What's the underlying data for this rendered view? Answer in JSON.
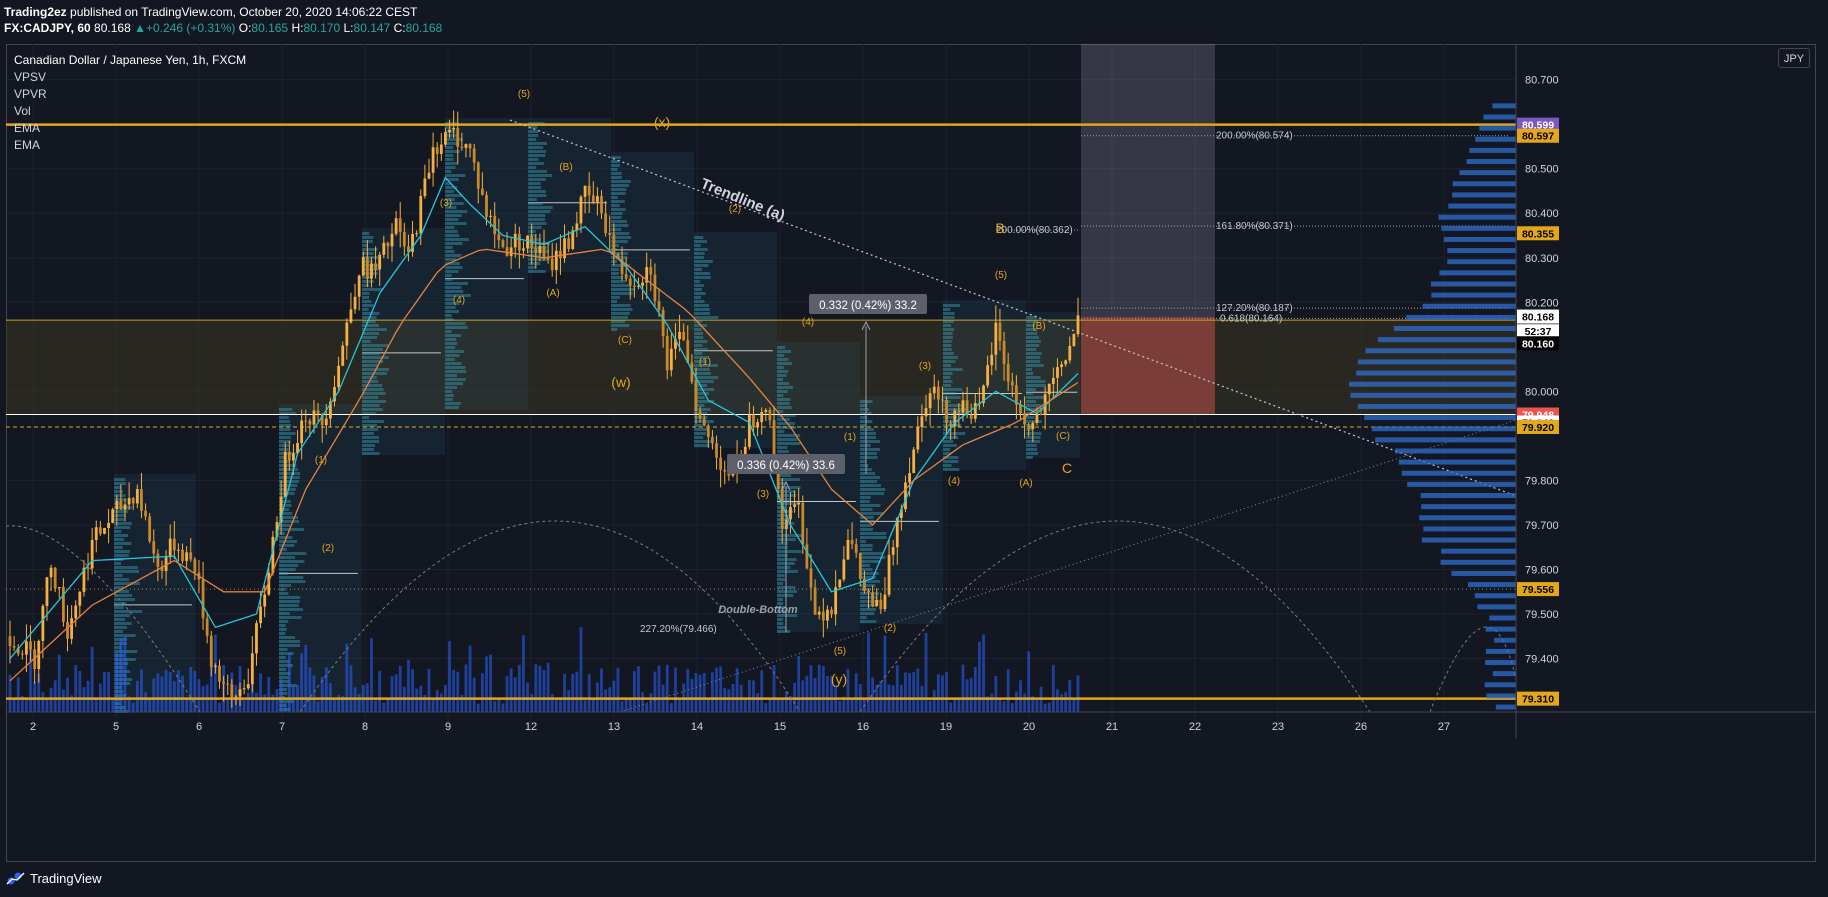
{
  "header": {
    "publisher": "Trading2ez",
    "published_text": "published on TradingView.com, October 20, 2020 14:06:22 CEST",
    "symbol": "FX:CADJPY, 60",
    "last": "80.168",
    "change": "+0.246 (+0.31%)",
    "o_label": "O:",
    "open": "80.165",
    "h_label": "H:",
    "high": "80.170",
    "l_label": "L:",
    "low": "80.147",
    "c_label": "C:",
    "close": "80.168"
  },
  "legend": {
    "title": "Canadian Dollar / Japanese Yen, 1h, FXCM",
    "indicators": [
      "VPSV",
      "VPVR",
      "Vol",
      "EMA",
      "EMA"
    ]
  },
  "currency": "JPY",
  "footer": {
    "brand": "TradingView"
  },
  "colors": {
    "bg": "#131722",
    "candle": "#f5b041",
    "grid": "#1e222d",
    "ema_fast": "#26c6da",
    "ema_slow": "#e8833a",
    "gold": "#e3a71b",
    "volume": "#2962ff",
    "purple": "#7e57c2",
    "red": "#ef5350"
  },
  "chart_data": {
    "type": "candlestick",
    "y_range": [
      79.28,
      80.78
    ],
    "y_ticks": [
      "80.700",
      "80.500",
      "80.400",
      "80.300",
      "80.200",
      "80.000",
      "79.800",
      "79.700",
      "79.600",
      "79.500",
      "79.400"
    ],
    "x_ticks": [
      "2",
      "5",
      "6",
      "7",
      "8",
      "9",
      "12",
      "13",
      "14",
      "15",
      "16",
      "19",
      "20",
      "21",
      "22",
      "23",
      "26",
      "27"
    ],
    "close_path": [
      [
        0,
        79.45
      ],
      [
        6,
        79.4
      ],
      [
        10,
        79.62
      ],
      [
        14,
        79.46
      ],
      [
        20,
        79.66
      ],
      [
        25,
        79.72
      ],
      [
        31,
        79.78
      ],
      [
        36,
        79.6
      ],
      [
        40,
        79.66
      ],
      [
        45,
        79.61
      ],
      [
        49,
        79.4
      ],
      [
        54,
        79.3
      ],
      [
        58,
        79.36
      ],
      [
        62,
        79.55
      ],
      [
        67,
        79.84
      ],
      [
        72,
        79.95
      ],
      [
        76,
        79.93
      ],
      [
        80,
        80.06
      ],
      [
        85,
        80.28
      ],
      [
        89,
        80.27
      ],
      [
        94,
        80.37
      ],
      [
        97,
        80.3
      ],
      [
        100,
        80.42
      ],
      [
        103,
        80.55
      ],
      [
        108,
        80.58
      ],
      [
        112,
        80.54
      ],
      [
        116,
        80.4
      ],
      [
        120,
        80.32
      ],
      [
        124,
        80.34
      ],
      [
        128,
        80.32
      ],
      [
        131,
        80.28
      ],
      [
        136,
        80.34
      ],
      [
        140,
        80.44
      ],
      [
        144,
        80.41
      ],
      [
        148,
        80.28
      ],
      [
        152,
        80.25
      ],
      [
        156,
        80.28
      ],
      [
        160,
        80.06
      ],
      [
        164,
        80.13
      ],
      [
        168,
        79.93
      ],
      [
        172,
        79.86
      ],
      [
        176,
        79.8
      ],
      [
        180,
        79.93
      ],
      [
        184,
        79.98
      ],
      [
        188,
        79.71
      ],
      [
        192,
        79.74
      ],
      [
        196,
        79.5
      ],
      [
        200,
        79.52
      ],
      [
        204,
        79.68
      ],
      [
        208,
        79.55
      ],
      [
        212,
        79.5
      ],
      [
        216,
        79.72
      ],
      [
        220,
        79.88
      ],
      [
        224,
        80.02
      ],
      [
        228,
        79.94
      ],
      [
        232,
        79.97
      ],
      [
        236,
        79.95
      ],
      [
        240,
        80.14
      ],
      [
        244,
        80.0
      ],
      [
        248,
        79.91
      ],
      [
        252,
        79.97
      ],
      [
        256,
        80.06
      ],
      [
        260,
        80.15
      ]
    ],
    "ema_fast": [
      [
        0,
        79.4
      ],
      [
        20,
        79.62
      ],
      [
        40,
        79.63
      ],
      [
        50,
        79.47
      ],
      [
        60,
        79.5
      ],
      [
        70,
        79.86
      ],
      [
        80,
        80.0
      ],
      [
        90,
        80.22
      ],
      [
        100,
        80.35
      ],
      [
        106,
        80.48
      ],
      [
        112,
        80.42
      ],
      [
        120,
        80.35
      ],
      [
        130,
        80.33
      ],
      [
        140,
        80.37
      ],
      [
        150,
        80.28
      ],
      [
        160,
        80.15
      ],
      [
        170,
        79.98
      ],
      [
        180,
        79.93
      ],
      [
        190,
        79.7
      ],
      [
        200,
        79.55
      ],
      [
        210,
        79.58
      ],
      [
        220,
        79.8
      ],
      [
        230,
        79.93
      ],
      [
        240,
        80.0
      ],
      [
        250,
        79.95
      ],
      [
        260,
        80.04
      ]
    ],
    "ema_slow": [
      [
        0,
        79.35
      ],
      [
        20,
        79.52
      ],
      [
        40,
        79.62
      ],
      [
        52,
        79.55
      ],
      [
        62,
        79.55
      ],
      [
        72,
        79.78
      ],
      [
        85,
        79.98
      ],
      [
        95,
        80.15
      ],
      [
        105,
        80.28
      ],
      [
        115,
        80.32
      ],
      [
        130,
        80.3
      ],
      [
        145,
        80.32
      ],
      [
        155,
        80.25
      ],
      [
        165,
        80.18
      ],
      [
        180,
        80.03
      ],
      [
        190,
        79.92
      ],
      [
        200,
        79.78
      ],
      [
        210,
        79.7
      ],
      [
        220,
        79.8
      ],
      [
        232,
        79.88
      ],
      [
        245,
        79.93
      ],
      [
        260,
        80.02
      ]
    ],
    "hlines": [
      {
        "price": 80.599,
        "label": "80.599",
        "style": "gold"
      },
      {
        "price": 80.16,
        "label": "80.160",
        "style": "yellow-thin"
      },
      {
        "price": 79.948,
        "label": "79.948",
        "style": "white"
      },
      {
        "price": 79.92,
        "label": "79.920",
        "style": "dashed-gold"
      },
      {
        "price": 79.556,
        "label": "79.556",
        "style": "dotted"
      },
      {
        "price": 79.31,
        "label": "79.310",
        "style": "gold"
      }
    ],
    "price_labels": [
      {
        "price": 80.599,
        "text": "80.599",
        "bg": "#7e57c2",
        "fg": "#ffffff"
      },
      {
        "price": 80.574,
        "text": "80.597",
        "bg": "#e3a71b",
        "fg": "#000000"
      },
      {
        "price": 80.355,
        "text": "80.355",
        "bg": "#e3a71b",
        "fg": "#000000"
      },
      {
        "price": 80.168,
        "text": "80.168",
        "bg": "#ffffff",
        "fg": "#000000"
      },
      {
        "price": 80.135,
        "text": "52:37",
        "bg": "#ffffff",
        "fg": "#000000"
      },
      {
        "price": 80.108,
        "text": "80.160",
        "bg": "#000000",
        "fg": "#ffffff"
      },
      {
        "price": 79.948,
        "text": "79.948",
        "bg": "#ef5350",
        "fg": "#ffffff"
      },
      {
        "price": 79.93,
        "text": "79.948",
        "bg": "#ffffff",
        "fg": "#000000"
      },
      {
        "price": 79.92,
        "text": "79.920",
        "bg": "#e3a71b",
        "fg": "#000000"
      },
      {
        "price": 79.556,
        "text": "79.556",
        "bg": "#e3a71b",
        "fg": "#000000"
      },
      {
        "price": 79.31,
        "text": "79.310",
        "bg": "#e3a71b",
        "fg": "#000000"
      }
    ],
    "fib_labels": [
      {
        "x": 1216,
        "price": 80.574,
        "text": "200.00%(80.574)"
      },
      {
        "x": 1216,
        "price": 80.371,
        "text": "161.80%(80.371)"
      },
      {
        "x": 996,
        "price": 80.362,
        "text": "200.00%(80.362)"
      },
      {
        "x": 1216,
        "price": 80.187,
        "text": "127.20%(80.187)"
      },
      {
        "x": 1220,
        "price": 80.164,
        "text": "0.618(80.164)"
      },
      {
        "x": 640,
        "price": 79.466,
        "text": "227.20%(79.466)"
      }
    ],
    "wave_labels": [
      {
        "x": 524,
        "y": 97,
        "text": "(5)"
      },
      {
        "x": 662,
        "y": 127,
        "text": "(x)",
        "big": true
      },
      {
        "x": 566,
        "y": 170,
        "text": "(B)"
      },
      {
        "x": 446,
        "y": 206,
        "text": "(3)"
      },
      {
        "x": 735,
        "y": 212,
        "text": "(2)"
      },
      {
        "x": 459,
        "y": 303,
        "text": "(4)"
      },
      {
        "x": 553,
        "y": 296,
        "text": "(A)"
      },
      {
        "x": 625,
        "y": 343,
        "text": "(C)"
      },
      {
        "x": 621,
        "y": 387,
        "text": "(w)",
        "big": true
      },
      {
        "x": 808,
        "y": 325,
        "text": "(4)"
      },
      {
        "x": 705,
        "y": 365,
        "text": "(1)"
      },
      {
        "x": 1000,
        "y": 233,
        "text": "B",
        "big": true
      },
      {
        "x": 1001,
        "y": 278,
        "text": "(5)"
      },
      {
        "x": 1039,
        "y": 329,
        "text": "(B)"
      },
      {
        "x": 925,
        "y": 369,
        "text": "(3)"
      },
      {
        "x": 850,
        "y": 440,
        "text": "(1)"
      },
      {
        "x": 1063,
        "y": 439,
        "text": "(C)"
      },
      {
        "x": 1067,
        "y": 473,
        "text": "C",
        "big": true
      },
      {
        "x": 763,
        "y": 497,
        "text": "(3)"
      },
      {
        "x": 954,
        "y": 484,
        "text": "(4)"
      },
      {
        "x": 1026,
        "y": 486,
        "text": "(A)"
      },
      {
        "x": 321,
        "y": 463,
        "text": "(1)"
      },
      {
        "x": 328,
        "y": 551,
        "text": "(2)"
      },
      {
        "x": 890,
        "y": 631,
        "text": "(2)"
      },
      {
        "x": 840,
        "y": 654,
        "text": "(5)"
      },
      {
        "x": 839,
        "y": 684,
        "text": "(y)",
        "big": true
      }
    ],
    "annotations": [
      {
        "x": 741,
        "y": 204,
        "text": "Trendline (a)",
        "rotate": 22,
        "type": "trendline"
      },
      {
        "x": 868,
        "y": 305,
        "text": "0.332 (0.42%) 33.2",
        "type": "box"
      },
      {
        "x": 786,
        "y": 465,
        "text": "0.336 (0.42%) 33.6",
        "type": "box"
      },
      {
        "x": 758,
        "y": 613,
        "text": "Double-Bottom",
        "type": "italic"
      }
    ]
  }
}
